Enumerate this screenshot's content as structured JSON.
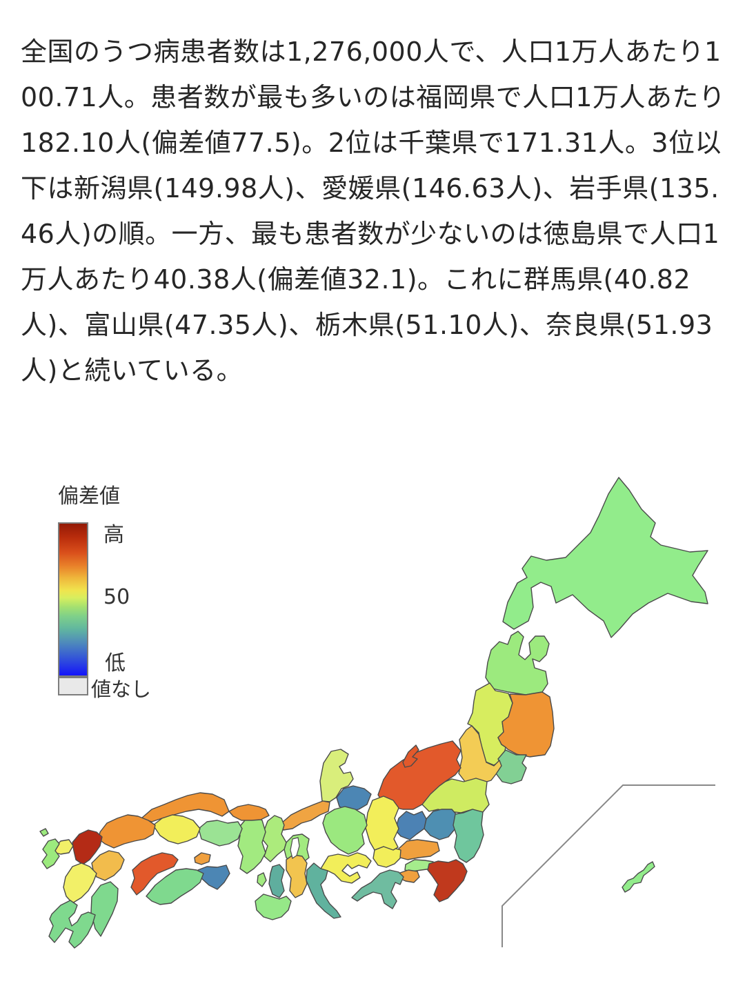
{
  "article": {
    "text": "全国のうつ病患者数は1,276,000人で、人口1万人あたり100.71人。患者数が最も多いのは福岡県で人口1万人あたり182.10人(偏差値77.5)。2位は千葉県で171.31人。3位以下は新潟県(149.98人)、愛媛県(146.63人)、岩手県(135.46人)の順。一方、最も患者数が少ないのは徳島県で人口1万人あたり40.38人(偏差値32.1)。これに群馬県(40.82人)、富山県(47.35人)、栃木県(51.10人)、奈良県(51.93人)と続いている。"
  },
  "legend": {
    "title": "偏差値",
    "high_label": "高",
    "mid_label": "50",
    "low_label": "低",
    "no_value_label": "値なし",
    "no_value_color": "#e9e9e9",
    "gradient": [
      "#931a06 0%",
      "#b92c0c 9%",
      "#d94f1b 19%",
      "#e9822a 28%",
      "#efb83c 36%",
      "#f0e44e 44%",
      "#d7ee5f 49%",
      "#a3e070 55%",
      "#7fd089 61%",
      "#62b89e 69%",
      "#4f8cba 78%",
      "#3558d6 88%",
      "#1414fa 100%"
    ]
  },
  "map": {
    "prefecture_colors": {
      "hokkaido": "#92ec8b",
      "aomori": "#9cea7e",
      "iwate": "#ef9434",
      "miyagi": "#82d094",
      "akita": "#d7ed5f",
      "yamagata": "#f3cc55",
      "fukushima": "#cfeb61",
      "ibaraki": "#6fc69d",
      "tochigi": "#4e8fb2",
      "gunma": "#4c82b4",
      "saitama": "#f0a03e",
      "chiba": "#c0391d",
      "tokyo": "#a5ec8c",
      "kanagawa": "#f0a03e",
      "niigata": "#e2592b",
      "sado": "#e2592b",
      "toyama": "#4c86b4",
      "ishikawa": "#d9ee7b",
      "fukui": "#f0a442",
      "yamanashi": "#f2ee5a",
      "nagano": "#f2ee5a",
      "gifu": "#9be87f",
      "shizuoka": "#6fbca0",
      "aichi": "#f2ee5a",
      "mie": "#60b29e",
      "shiga": "#a2ea80",
      "kyoto": "#aceb7c",
      "osaka": "#5fae9e",
      "hyogo": "#a2ea80",
      "awaji": "#a2ea80",
      "nara": "#f2c44f",
      "wakayama": "#96e888",
      "tottori": "#ef9434",
      "shimane": "#ef9434",
      "okayama": "#9be394",
      "hiroshima": "#f2ee5a",
      "yamaguchi": "#ef9434",
      "tokushima": "#4c86b4",
      "kagawa": "#f0a03e",
      "ehime": "#e2592b",
      "kochi": "#7fd98e",
      "fukuoka": "#b42b16",
      "saga": "#f2f068",
      "nagasaki": "#9cea7e",
      "nagasaki-islands": "#9cea7e",
      "oita": "#f2bc4c",
      "kumamoto": "#f2f068",
      "miyazaki": "#7fd98e",
      "kagoshima": "#7fd98e",
      "okinawa": "#92ec8b"
    }
  },
  "chart_data": {
    "type": "choropleth",
    "region": "日本 47都道府県",
    "metric": "うつ病患者数(人口1万人あたり)偏差値",
    "national": {
      "patients_total": "1,276,000人",
      "per_10000": 100.71
    },
    "top5": [
      {
        "rank": 1,
        "prefecture": "福岡県",
        "per_10000": 182.1,
        "hensachi": 77.5
      },
      {
        "rank": 2,
        "prefecture": "千葉県",
        "per_10000": 171.31
      },
      {
        "rank": 3,
        "prefecture": "新潟県",
        "per_10000": 149.98
      },
      {
        "rank": 4,
        "prefecture": "愛媛県",
        "per_10000": 146.63
      },
      {
        "rank": 5,
        "prefecture": "岩手県",
        "per_10000": 135.46
      }
    ],
    "bottom5": [
      {
        "rank": 47,
        "prefecture": "徳島県",
        "per_10000": 40.38,
        "hensachi": 32.1
      },
      {
        "rank": 46,
        "prefecture": "群馬県",
        "per_10000": 40.82
      },
      {
        "rank": 45,
        "prefecture": "富山県",
        "per_10000": 47.35
      },
      {
        "rank": 44,
        "prefecture": "栃木県",
        "per_10000": 51.1
      },
      {
        "rank": 43,
        "prefecture": "奈良県",
        "per_10000": 51.93
      }
    ],
    "legend": {
      "title": "偏差値",
      "scale_labels": [
        "高",
        "50",
        "低"
      ],
      "no_value": "値なし"
    }
  }
}
